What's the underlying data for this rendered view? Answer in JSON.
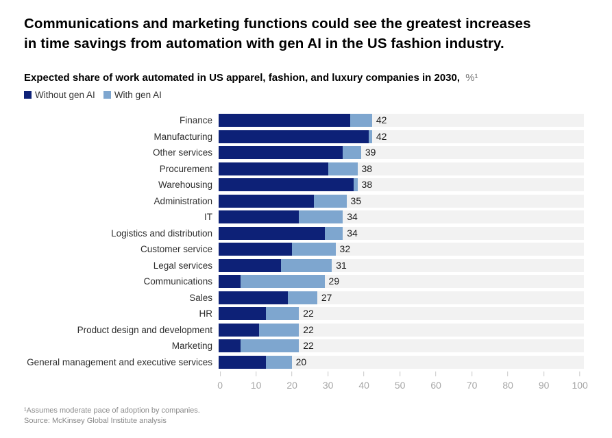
{
  "title_lines": [
    "Communications and marketing functions could see the greatest increases",
    "in time savings from automation with gen AI in the US fashion industry."
  ],
  "subtitle": {
    "text": "Expected share of work automated in US apparel, fashion, and luxury companies in 2030,",
    "unit": "%¹"
  },
  "footnotes": [
    "¹Assumes moderate pace of adoption by companies.",
    "Source: McKinsey Global Institute analysis"
  ],
  "colors": {
    "without_gen_ai": "#0d2177",
    "with_gen_ai": "#7ea6cf",
    "track": "#f2f2f2"
  },
  "chart_data": {
    "type": "bar",
    "orientation": "horizontal",
    "stacked": true,
    "title": "Expected share of work automated in US apparel, fashion, and luxury companies in 2030, %",
    "legend_position": "top-left",
    "xlim": [
      0,
      100
    ],
    "x_ticks": [
      0,
      10,
      20,
      30,
      40,
      50,
      60,
      70,
      80,
      90,
      100
    ],
    "grid": false,
    "categories": [
      "Finance",
      "Manufacturing",
      "Other services",
      "Procurement",
      "Warehousing",
      "Administration",
      "IT",
      "Logistics and distribution",
      "Customer service",
      "Legal services",
      "Communications",
      "Sales",
      "HR",
      "Product design and development",
      "Marketing",
      "General management and executive services"
    ],
    "series": [
      {
        "name": "Without gen AI",
        "color": "#0d2177",
        "values": [
          36,
          41,
          34,
          30,
          37,
          26,
          22,
          29,
          20,
          17,
          6,
          19,
          13,
          11,
          6,
          13
        ]
      },
      {
        "name": "With gen AI",
        "color": "#7ea6cf",
        "values": [
          6,
          1,
          5,
          8,
          1,
          9,
          12,
          5,
          12,
          14,
          23,
          8,
          9,
          11,
          16,
          7
        ]
      }
    ],
    "totals": [
      42,
      42,
      39,
      38,
      38,
      35,
      34,
      34,
      32,
      31,
      29,
      27,
      22,
      22,
      22,
      20
    ]
  }
}
